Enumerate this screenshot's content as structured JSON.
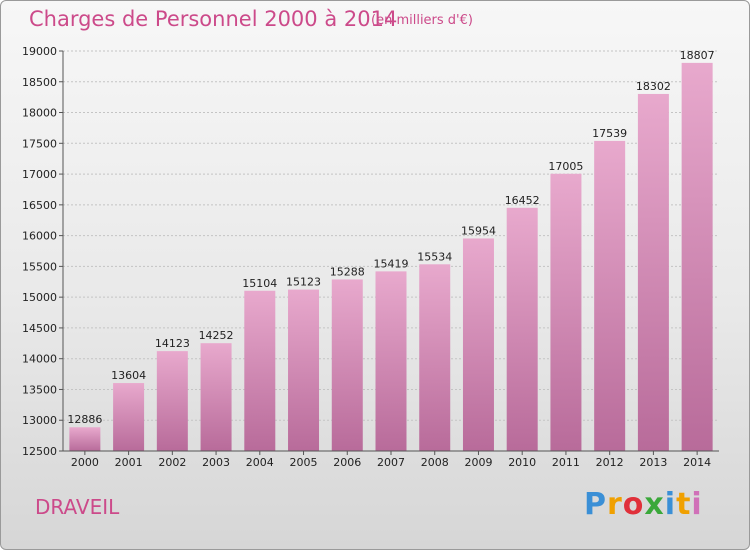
{
  "chart_data": {
    "type": "bar",
    "title": "Charges de Personnel 2000 à 2014",
    "subtitle": "(en milliers d'€)",
    "categories": [
      "2000",
      "2001",
      "2002",
      "2003",
      "2004",
      "2005",
      "2006",
      "2007",
      "2008",
      "2009",
      "2010",
      "2011",
      "2012",
      "2013",
      "2014"
    ],
    "values": [
      12886,
      13604,
      14123,
      14252,
      15104,
      15123,
      15288,
      15419,
      15534,
      15954,
      16452,
      17005,
      17539,
      18302,
      18807
    ],
    "ylim": [
      12500,
      19000
    ],
    "yticks": [
      12500,
      13000,
      13500,
      14000,
      14500,
      15000,
      15500,
      16000,
      16500,
      17000,
      17500,
      18000,
      18500,
      19000
    ],
    "xlabel": "",
    "ylabel": "",
    "grid": true,
    "bar_color": "#d98ab8"
  },
  "footer": {
    "city": "DRAVEIL",
    "logo": [
      "P",
      "r",
      "o",
      "x",
      "i",
      "t",
      "i"
    ],
    "logo_colors": [
      "#3a8fd6",
      "#f0a000",
      "#e0303a",
      "#3aa83a",
      "#3a8fd6",
      "#f0a000",
      "#d070b8"
    ]
  }
}
